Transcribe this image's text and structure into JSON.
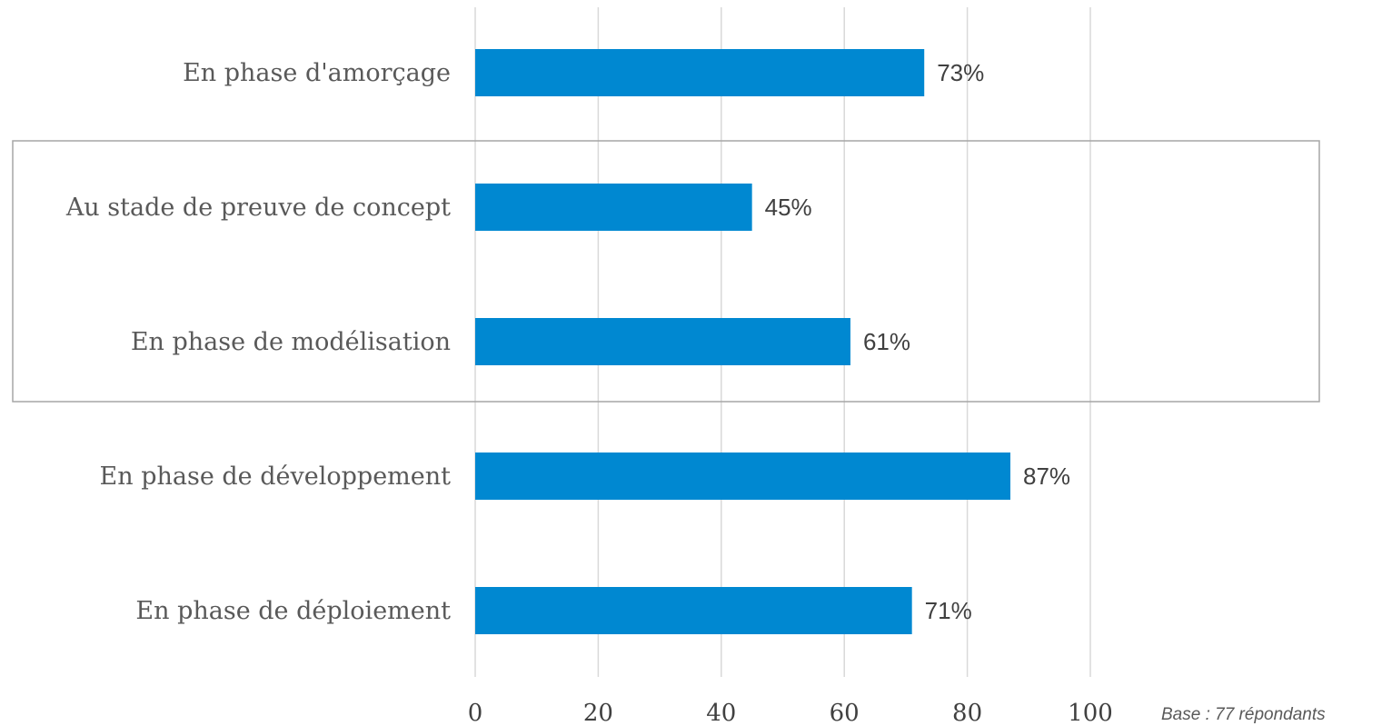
{
  "chart_data": {
    "type": "bar",
    "orientation": "horizontal",
    "categories": [
      "En phase d'amorçage",
      "Au stade de preuve de concept",
      "En phase de modélisation",
      "En phase de développement",
      "En phase de déploiement"
    ],
    "values": [
      73,
      45,
      61,
      87,
      71
    ],
    "data_labels": [
      "73%",
      "45%",
      "61%",
      "87%",
      "71%"
    ],
    "x_ticks": [
      "0",
      "20",
      "40",
      "60",
      "80",
      "100"
    ],
    "xlim": [
      0,
      100
    ],
    "grid": true,
    "bar_color": "#0088d1",
    "highlight_box_categories": [
      "Au stade de preuve de concept",
      "En phase de modélisation"
    ],
    "note": "Base : 77 répondants"
  }
}
